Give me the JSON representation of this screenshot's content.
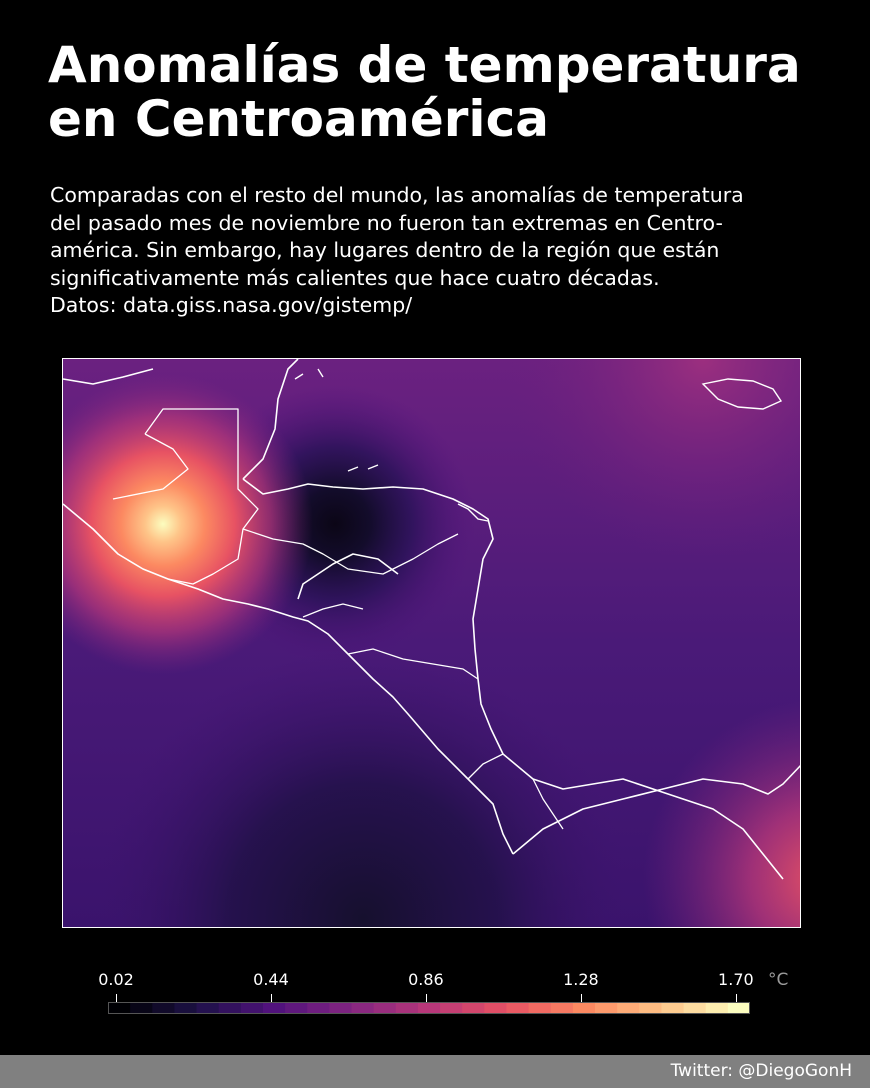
{
  "header": {
    "title_lines": [
      "Anomalías de temperatura",
      "en Centroamérica"
    ],
    "subtitle_lines": [
      "Comparadas con el resto del mundo, las anomalías de temperatura",
      "del pasado mes de noviembre no fueron tan extremas en Centro-",
      "américa. Sin embargo, hay lugares dentro de la región que están",
      "significativamente más calientes que hace cuatro décadas.",
      "Datos: data.giss.nasa.gov/gistemp/"
    ]
  },
  "colorbar": {
    "ticks": [
      "0.02",
      "0.44",
      "0.86",
      "1.28",
      "1.70"
    ],
    "tick_values": [
      0.02,
      0.44,
      0.86,
      1.28,
      1.7
    ],
    "min": 0.02,
    "max": 1.76,
    "unit": "°C",
    "colormap": [
      "#000004",
      "#1d1147",
      "#51127c",
      "#832681",
      "#b73779",
      "#e75263",
      "#fc8961",
      "#fec488",
      "#fcfdbf"
    ]
  },
  "map": {
    "colors": {
      "land_outline": "#ffffff",
      "hot_spot": "#fcfdbf",
      "cold_spot": "#0b0616",
      "background_fill": "#5a1f7a"
    }
  },
  "footer": {
    "credit": "Twitter: @DiegoGonH"
  }
}
